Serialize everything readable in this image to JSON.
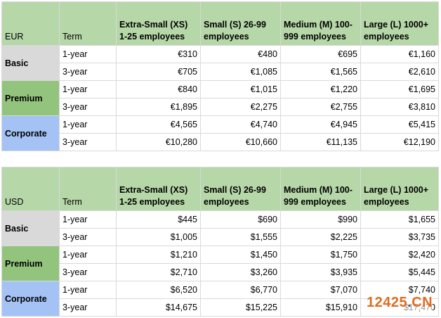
{
  "tables": [
    {
      "currency": "EUR",
      "term_header": "Term",
      "columns": [
        "Extra-Small (XS) 1-25 employees",
        "Small (S) 26-99 employees",
        "Medium (M) 100-999 employees",
        "Large (L) 1000+ employees"
      ],
      "tiers": [
        {
          "name": "Basic",
          "rows": [
            {
              "term": "1-year",
              "prices": [
                "€310",
                "€480",
                "€695",
                "€1,160"
              ]
            },
            {
              "term": "3-year",
              "prices": [
                "€705",
                "€1,085",
                "€1,565",
                "€2,610"
              ]
            }
          ]
        },
        {
          "name": "Premium",
          "rows": [
            {
              "term": "1-year",
              "prices": [
                "€840",
                "€1,015",
                "€1,220",
                "€1,695"
              ]
            },
            {
              "term": "3-year",
              "prices": [
                "€1,895",
                "€2,275",
                "€2,755",
                "€3,810"
              ]
            }
          ]
        },
        {
          "name": "Corporate",
          "rows": [
            {
              "term": "1-year",
              "prices": [
                "€4,565",
                "€4,740",
                "€4,945",
                "€5,415"
              ]
            },
            {
              "term": "3-year",
              "prices": [
                "€10,280",
                "€10,660",
                "€11,135",
                "€12,190"
              ]
            }
          ]
        }
      ]
    },
    {
      "currency": "USD",
      "term_header": "Term",
      "columns": [
        "Extra-Small (XS) 1-25 employees",
        "Small (S) 26-99 employees",
        "Medium (M) 100-999 employees",
        "Large (L) 1000+ employees"
      ],
      "tiers": [
        {
          "name": "Basic",
          "rows": [
            {
              "term": "1-year",
              "prices": [
                "$445",
                "$690",
                "$990",
                "$1,655"
              ]
            },
            {
              "term": "3-year",
              "prices": [
                "$1,005",
                "$1,555",
                "$2,225",
                "$3,735"
              ]
            }
          ]
        },
        {
          "name": "Premium",
          "rows": [
            {
              "term": "1-year",
              "prices": [
                "$1,210",
                "$1,450",
                "$1,750",
                "$2,420"
              ]
            },
            {
              "term": "3-year",
              "prices": [
                "$2,710",
                "$3,260",
                "$3,935",
                "$5,445"
              ]
            }
          ]
        },
        {
          "name": "Corporate",
          "rows": [
            {
              "term": "1-year",
              "prices": [
                "$6,520",
                "$6,770",
                "$7,070",
                "$7,740"
              ]
            },
            {
              "term": "3-year",
              "prices": [
                "$14,675",
                "$15,225",
                "$15,910",
                "$17,470"
              ]
            }
          ]
        }
      ]
    }
  ],
  "watermark": {
    "brand": "12425",
    "dot": ".",
    "tld": "CN"
  },
  "colors": {
    "header": "#b6d7a8",
    "basic": "#d9d9d9",
    "premium": "#93c47d",
    "corporate": "#a4c2f4",
    "watermark": "#e06c1f"
  }
}
